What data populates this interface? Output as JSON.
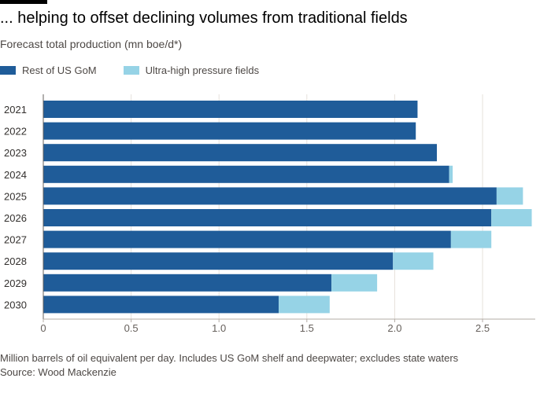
{
  "header": {
    "title": "... helping to offset declining volumes from traditional fields",
    "subtitle": "Forecast total production (mn boe/d*)"
  },
  "footer": {
    "note": "Million barrels of oil equivalent per day. Includes US GoM shelf and deepwater; excludes state waters",
    "source": "Source: Wood Mackenzie"
  },
  "chart_data": {
    "type": "bar",
    "orientation": "horizontal",
    "stacked": true,
    "title": "... helping to offset declining volumes from traditional fields",
    "subtitle": "Forecast total production (mn boe/d*)",
    "categories": [
      "2021",
      "2022",
      "2023",
      "2024",
      "2025",
      "2026",
      "2027",
      "2028",
      "2029",
      "2030"
    ],
    "series": [
      {
        "name": "Rest of US GoM",
        "color": "#1f5c99",
        "values": [
          2.13,
          2.12,
          2.24,
          2.31,
          2.58,
          2.55,
          2.32,
          1.99,
          1.64,
          1.34
        ]
      },
      {
        "name": "Ultra-high pressure fields",
        "color": "#96d3e6",
        "values": [
          0.0,
          0.0,
          0.0,
          0.02,
          0.15,
          0.23,
          0.23,
          0.23,
          0.26,
          0.29
        ]
      }
    ],
    "x_ticks": [
      "0",
      "0.5",
      "1.0",
      "1.5",
      "2.0",
      "2.5"
    ],
    "xlim": [
      0,
      2.8
    ],
    "legend_position": "top-left",
    "grid": true
  }
}
